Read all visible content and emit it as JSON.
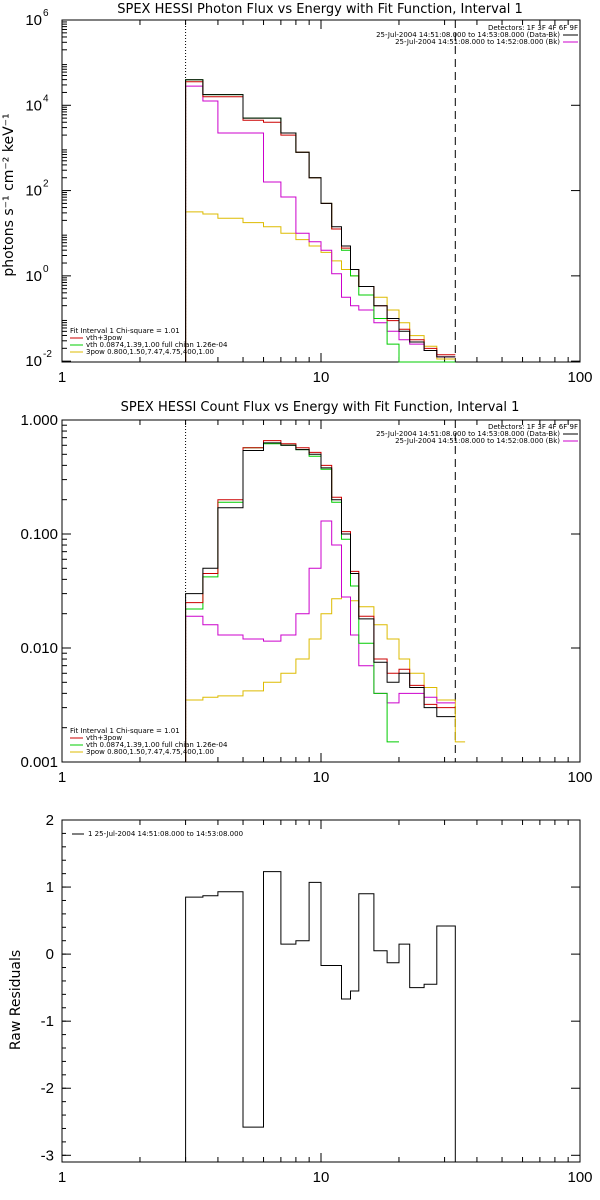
{
  "charts": [
    {
      "title": "SPEX HESSI Photon Flux vs Energy with Fit Function, Interval 1",
      "ylabel": "photons s⁻¹ cm⁻² keV⁻¹",
      "detectors": "Detectors: 1F 3F 4F 6F 9F",
      "time_lines": [
        {
          "text": "25-Jul-2004 14:51:08.000 to 14:53:08.000 (Data-Bk)",
          "color": "#000000"
        },
        {
          "text": "25-Jul-2004 14:51:08.000 to 14:52:08.000 (Bk)",
          "color": "#cc00cc"
        }
      ],
      "fit_legend": [
        {
          "text": "Fit Interval 1    Chi-square = 1.01",
          "color": null
        },
        {
          "text": "vth+3pow",
          "color": "#cc0000"
        },
        {
          "text": "vth 0.0874,1.39,1.00  full chian 1.26e-04",
          "color": "#00cc00"
        },
        {
          "text": "3pow 0.800,1.50,7.47,4.75,400,1.00",
          "color": "#ddbb00"
        }
      ],
      "x_ticks": [
        "1",
        "10",
        "100"
      ],
      "y_ticks": [
        {
          "base": "10",
          "exp": "-2",
          "log": -2
        },
        {
          "base": "10",
          "exp": "0",
          "log": 0
        },
        {
          "base": "10",
          "exp": "2",
          "log": 2
        },
        {
          "base": "10",
          "exp": "4",
          "log": 4
        },
        {
          "base": "10",
          "exp": "6",
          "log": 6
        }
      ]
    },
    {
      "title": "SPEX HESSI Count Flux vs Energy with Fit Function, Interval 1",
      "ylabel": "",
      "detectors": "Detectors: 1F 3F 4F 6F 9F",
      "time_lines": [
        {
          "text": "25-Jul-2004 14:51:08.000 to 14:53:08.000 (Data-Bk)",
          "color": "#000000"
        },
        {
          "text": "25-Jul-2004 14:51:08.000 to 14:52:08.000 (Bk)",
          "color": "#cc00cc"
        }
      ],
      "fit_legend": [
        {
          "text": "Fit Interval 1    Chi-square = 1.01",
          "color": null
        },
        {
          "text": "vth+3pow",
          "color": "#cc0000"
        },
        {
          "text": "vth 0.0874,1.39,1.00  full chian 1.26e-04",
          "color": "#00cc00"
        },
        {
          "text": "3pow 0.800,1.50,7.47,4.75,400,1.00",
          "color": "#ddbb00"
        }
      ],
      "x_ticks": [
        "1",
        "10",
        "100"
      ],
      "y_ticks": [
        {
          "label": "0.001",
          "log": -3
        },
        {
          "label": "0.010",
          "log": -2
        },
        {
          "label": "0.100",
          "log": -1
        },
        {
          "label": "1.000",
          "log": 0
        }
      ]
    },
    {
      "title": "",
      "ylabel": "Raw Residuals",
      "legend": "1  25-Jul-2004 14:51:08.000 to 14:53:08.000",
      "x_ticks": [
        "1",
        "10",
        "100"
      ],
      "y_ticks": [
        "-3",
        "-2",
        "-1",
        "0",
        "1",
        "2"
      ]
    }
  ],
  "chart_data": [
    {
      "type": "line",
      "x_scale": "log",
      "y_scale": "log",
      "xlim": [
        1,
        100
      ],
      "ylim_log10": [
        -2.02,
        6
      ],
      "fit_range": [
        3,
        33
      ],
      "edges": [
        3,
        3.5,
        4,
        5,
        6,
        7,
        8,
        9,
        10,
        11,
        12,
        13,
        14,
        16,
        18,
        20,
        22,
        25,
        28,
        33
      ],
      "series": [
        {
          "key": "data",
          "color": "#000000",
          "log_values": [
            4.6,
            4.25,
            4.25,
            3.7,
            3.7,
            3.35,
            2.9,
            2.3,
            1.7,
            1.15,
            0.7,
            0.15,
            -0.25,
            -0.7,
            -1.0,
            -1.3,
            -1.55,
            -1.75,
            -1.9
          ]
        },
        {
          "key": "total",
          "color": "#cc0000",
          "log_values": [
            4.55,
            4.2,
            4.2,
            3.65,
            3.6,
            3.3,
            2.9,
            2.3,
            1.7,
            1.1,
            0.65,
            0.15,
            -0.25,
            -0.7,
            -1.05,
            -1.25,
            -1.5,
            -1.7,
            -1.85
          ]
        },
        {
          "key": "vth",
          "color": "#00cc00",
          "log_values": [
            4.6,
            4.25,
            4.25,
            3.7,
            3.7,
            3.35,
            2.9,
            2.3,
            1.7,
            1.1,
            0.6,
            0.0,
            -0.45,
            -1.0,
            -1.6,
            -2.02,
            -2.02,
            -2.02,
            -2.02
          ]
        },
        {
          "key": "bk",
          "color": "#cc00cc",
          "log_values": [
            4.45,
            4.1,
            3.35,
            3.35,
            2.2,
            1.85,
            1.0,
            0.8,
            0.6,
            0.05,
            -0.5,
            -0.7,
            -0.8,
            -1.1,
            -1.3,
            -1.5,
            -1.6,
            -1.75,
            -1.9
          ]
        },
        {
          "key": "3pow",
          "color": "#ddbb00",
          "log_values": [
            1.5,
            1.45,
            1.35,
            1.25,
            1.15,
            1.0,
            0.85,
            0.7,
            0.55,
            0.35,
            0.15,
            0.0,
            -0.25,
            -0.5,
            -0.8,
            -1.1,
            -1.4,
            -1.65,
            -1.95
          ]
        }
      ]
    },
    {
      "type": "line",
      "x_scale": "log",
      "y_scale": "log",
      "xlim": [
        1,
        100
      ],
      "ylim": [
        0.001,
        1.0
      ],
      "fit_range": [
        3,
        33
      ],
      "edges": [
        3,
        3.5,
        4,
        5,
        6,
        7,
        8,
        9,
        10,
        11,
        12,
        13,
        14,
        16,
        18,
        20,
        22,
        25,
        28,
        33,
        36
      ],
      "series": [
        {
          "key": "data",
          "color": "#000000",
          "values": [
            0.03,
            0.05,
            0.17,
            0.54,
            0.63,
            0.6,
            0.55,
            0.5,
            0.38,
            0.2,
            0.1,
            0.045,
            0.018,
            0.0075,
            0.005,
            0.006,
            0.0045,
            0.003,
            0.0025,
            null
          ]
        },
        {
          "key": "total",
          "color": "#cc0000",
          "values": [
            0.025,
            0.045,
            0.2,
            0.57,
            0.66,
            0.62,
            0.57,
            0.52,
            0.4,
            0.21,
            0.105,
            0.047,
            0.019,
            0.008,
            0.006,
            0.0065,
            0.0047,
            0.0032,
            0.003,
            null
          ]
        },
        {
          "key": "vth",
          "color": "#00cc00",
          "values": [
            0.022,
            0.042,
            0.19,
            0.57,
            0.62,
            0.6,
            0.55,
            0.48,
            0.37,
            0.19,
            0.09,
            0.035,
            0.011,
            0.004,
            0.0015,
            null,
            null,
            null,
            null,
            null
          ]
        },
        {
          "key": "bk",
          "color": "#cc00cc",
          "values": [
            0.019,
            0.016,
            0.013,
            0.012,
            0.0115,
            0.013,
            0.02,
            0.05,
            0.13,
            0.08,
            0.028,
            0.013,
            0.007,
            0.004,
            0.0033,
            0.004,
            0.004,
            0.0037,
            0.0033,
            null
          ]
        },
        {
          "key": "3pow",
          "color": "#ddbb00",
          "values": [
            0.0035,
            0.0037,
            0.0038,
            0.0042,
            0.005,
            0.006,
            0.008,
            0.012,
            0.02,
            0.027,
            0.028,
            0.026,
            0.023,
            0.016,
            0.012,
            0.008,
            0.006,
            0.0045,
            0.0035,
            0.0015
          ]
        }
      ]
    },
    {
      "type": "line",
      "x_scale": "log",
      "xlim": [
        1,
        100
      ],
      "ylim": [
        -3.1,
        2
      ],
      "edges": [
        3,
        3.5,
        4,
        5,
        6,
        7,
        8,
        9,
        10,
        11,
        12,
        13,
        14,
        16,
        18,
        20,
        22,
        25,
        28,
        33
      ],
      "series": [
        {
          "key": "residuals",
          "color": "#000000",
          "values": [
            0.85,
            0.87,
            0.93,
            -2.58,
            1.23,
            0.15,
            0.2,
            1.07,
            -0.17,
            -0.17,
            -0.67,
            -0.55,
            0.9,
            0.05,
            -0.13,
            0.15,
            -0.5,
            -0.45,
            0.42
          ]
        }
      ]
    }
  ]
}
